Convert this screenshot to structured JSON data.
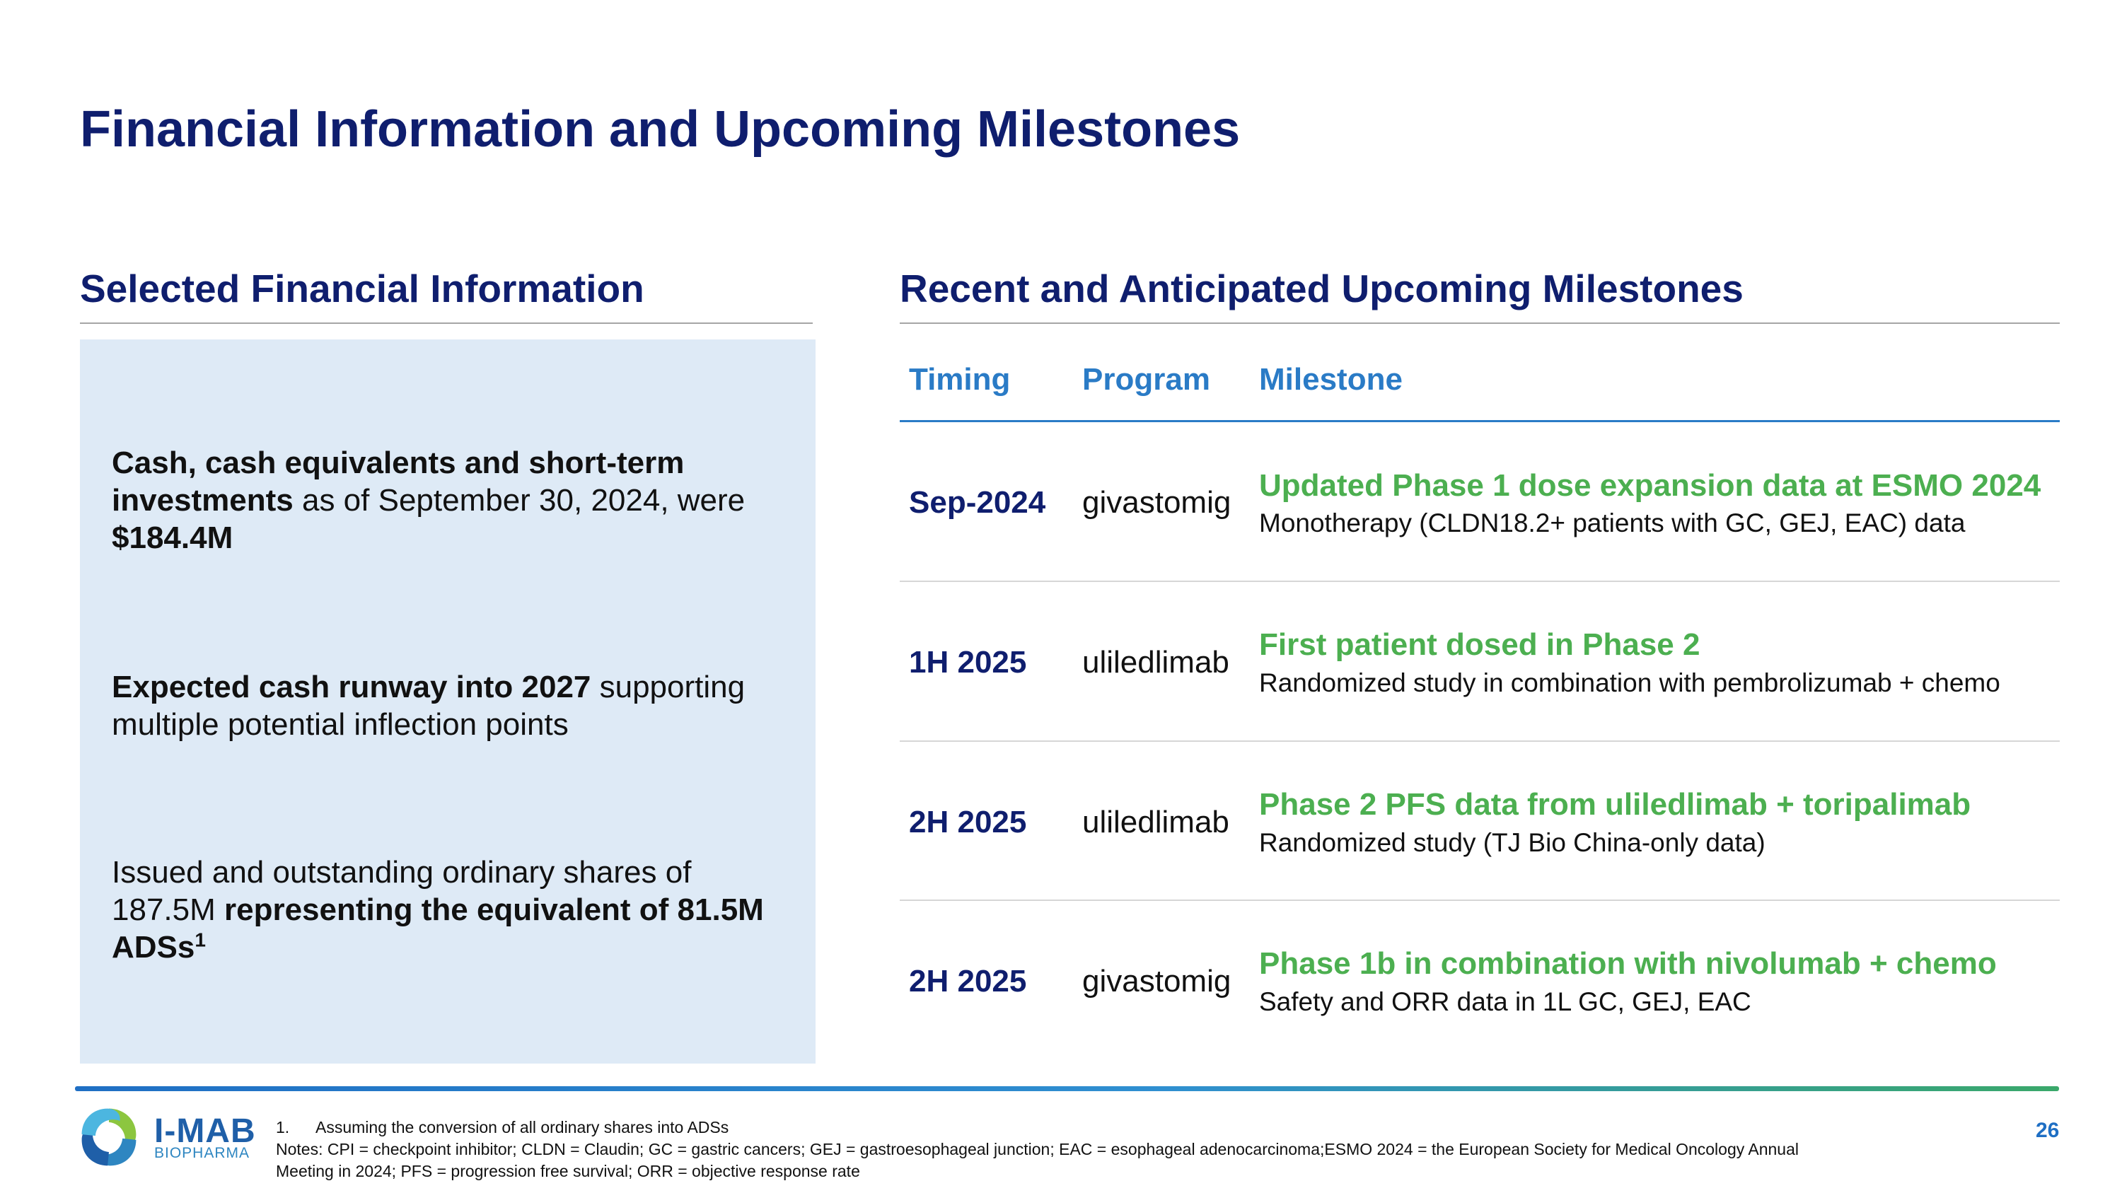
{
  "slide": {
    "title": "Financial Information and Upcoming Milestones",
    "page_number": "26"
  },
  "financial": {
    "heading": "Selected Financial Information",
    "items": [
      {
        "bold1": "Cash, cash equivalents and short-term investments",
        "text1": " as of September 30, 2024, were ",
        "bold2": "$184.4M"
      },
      {
        "bold1": "Expected cash runway into 2027",
        "text1": " supporting multiple potential inflection points"
      },
      {
        "text1": "Issued and outstanding ordinary shares of 187.5M ",
        "bold1": "representing the equivalent of 81.5M ADSs",
        "sup": "1"
      }
    ]
  },
  "milestones": {
    "heading": "Recent and Anticipated Upcoming Milestones",
    "columns": [
      "Timing",
      "Program",
      "Milestone"
    ],
    "rows": [
      {
        "timing": "Sep-2024",
        "program": "givastomig",
        "title": "Updated Phase 1 dose expansion data at ESMO 2024",
        "desc": "Monotherapy (CLDN18.2+ patients with GC, GEJ, EAC) data"
      },
      {
        "timing": "1H 2025",
        "program": "uliledlimab",
        "title": "First patient dosed in Phase 2",
        "desc": "Randomized study in combination with pembrolizumab + chemo"
      },
      {
        "timing": "2H 2025",
        "program": "uliledlimab",
        "title": "Phase 2 PFS data from uliledlimab + toripalimab",
        "desc": "Randomized study (TJ Bio China-only data)"
      },
      {
        "timing": "2H 2025",
        "program": "givastomig",
        "title": "Phase 1b in combination with nivolumab + chemo",
        "desc": "Safety and ORR data in 1L GC, GEJ, EAC"
      }
    ]
  },
  "footer": {
    "logo_text": "I-MAB",
    "logo_sub": "BIOPHARMA",
    "footnote_num": "1.",
    "footnote_1": "Assuming the conversion of all ordinary shares into ADSs",
    "notes_line1": "Notes: CPI = checkpoint inhibitor; CLDN = Claudin; GC = gastric cancers; GEJ = gastroesophageal junction; EAC = esophageal adenocarcinoma;ESMO 2024 = the European Society for Medical Oncology Annual",
    "notes_line2": "Meeting in 2024; PFS = progression free survival; ORR = objective response rate"
  },
  "colors": {
    "navy": "#0f1e6e",
    "accent_blue": "#2a7bc6",
    "milestone_green": "#4caf50",
    "panel_bg": "#deeaf6"
  }
}
